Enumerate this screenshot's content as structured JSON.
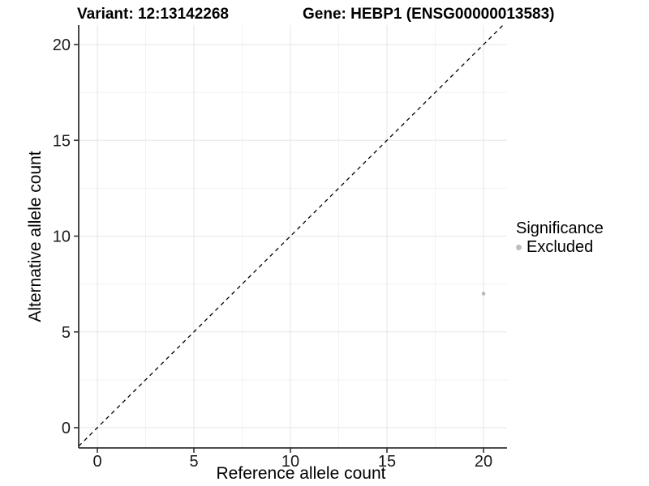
{
  "chart_data": {
    "type": "scatter",
    "titles": {
      "variant": "Variant: 12:13142268",
      "gene": "Gene: HEBP1 (ENSG00000013583)"
    },
    "xlabel": "Reference allele count",
    "ylabel": "Alternative allele count",
    "xticks": [
      0,
      5,
      10,
      15,
      20
    ],
    "yticks": [
      0,
      5,
      10,
      15,
      20
    ],
    "xlim": [
      -1,
      21.2
    ],
    "ylim": [
      -1.06,
      21.02
    ],
    "grid": {
      "major": true,
      "minor": true,
      "major_color": "#e6e6e6",
      "minor_color": "#f2f2f2"
    },
    "reference_line": {
      "type": "identity y=x",
      "style": "dashed",
      "color": "#000000"
    },
    "legend": {
      "title": "Significance",
      "position": "right",
      "entries": [
        {
          "label": "Excluded",
          "color": "#bdbdbd"
        }
      ]
    },
    "series": [
      {
        "name": "Excluded",
        "color": "#b9b9b9",
        "points": [
          [
            20,
            7
          ]
        ]
      }
    ],
    "colors": {
      "axis": "#333333",
      "tick_text": "#1a1a1a",
      "background": "#ffffff"
    }
  }
}
